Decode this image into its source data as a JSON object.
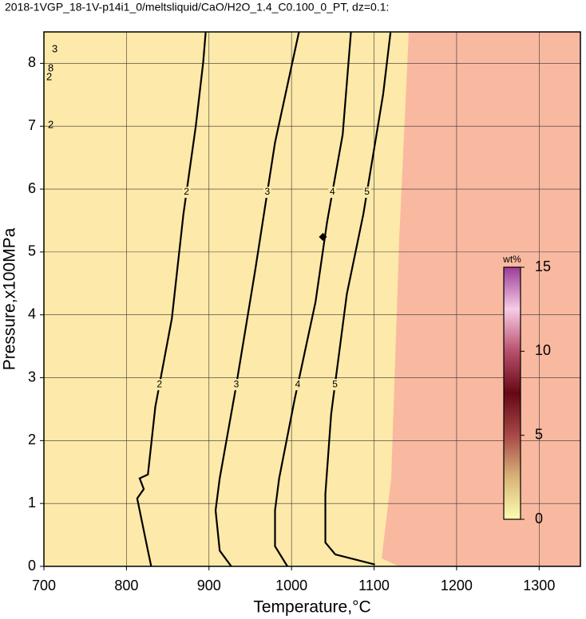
{
  "chart_data": {
    "type": "contour",
    "title": "2018-1VGP_18-1V-p14i1_0/meltsliquid/CaO/H2O_1.4_C0.100_0_PT, dz=0.1:",
    "x_label": "Temperature,°C",
    "y_label": "Pressure,x100MPa",
    "xlim": [
      700,
      1350
    ],
    "ylim": [
      0,
      8.5
    ],
    "xticks": [
      700,
      800,
      900,
      1000,
      1100,
      1200,
      1300
    ],
    "yticks": [
      0,
      1,
      2,
      3,
      4,
      5,
      6,
      7,
      8
    ],
    "grid": true,
    "contours": [
      {
        "level": 2,
        "x": [
          830,
          826,
          816,
          813,
          821,
          816,
          826,
          835,
          855,
          869,
          884,
          893,
          896
        ],
        "y": [
          0,
          0.25,
          0.89,
          1.08,
          1.23,
          1.4,
          1.46,
          2.54,
          3.94,
          5.6,
          7.0,
          8.02,
          8.5
        ]
      },
      {
        "level": 3,
        "x": [
          927,
          913,
          908,
          913,
          932,
          956,
          980,
          1009
        ],
        "y": [
          0,
          0.25,
          0.89,
          1.4,
          2.8,
          4.71,
          6.74,
          8.5
        ]
      },
      {
        "level": 4,
        "x": [
          995,
          980,
          980,
          985,
          1004,
          1029,
          1043,
          1062,
          1072
        ],
        "y": [
          0,
          0.32,
          0.89,
          1.4,
          2.67,
          4.2,
          5.47,
          6.87,
          8.5
        ]
      },
      {
        "level": 5,
        "x": [
          1101,
          1053,
          1041,
          1041,
          1048,
          1067,
          1087,
          1111,
          1120
        ],
        "y": [
          0.03,
          0.19,
          0.38,
          1.15,
          2.42,
          4.33,
          5.6,
          7.51,
          8.5
        ]
      }
    ],
    "annotations": [
      "3",
      "8",
      "2",
      "2"
    ],
    "points": {
      "x": [
        1038
      ],
      "y": [
        5.24
      ]
    },
    "colorbar": {
      "label": "wt%",
      "lim": [
        0,
        15
      ],
      "ticks": [
        0,
        5,
        10,
        15
      ],
      "colors": [
        "#fdfdb0",
        "#d8b478",
        "#a84848",
        "#650814",
        "#b8506c",
        "#f6cce6",
        "#9c3c98"
      ]
    }
  }
}
